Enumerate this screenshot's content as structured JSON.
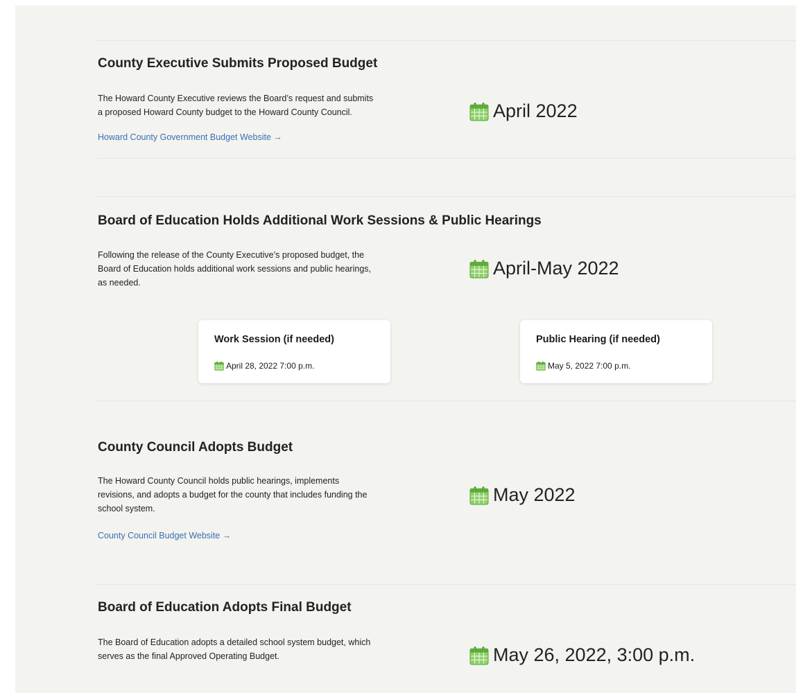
{
  "sections": [
    {
      "title": "County Executive Submits Proposed Budget",
      "description": [
        "The Howard County Executive reviews the Board’s request and submits",
        "a proposed Howard County budget to the Howard County Council."
      ],
      "link": "Howard County Government Budget Website →",
      "date": "April 2022"
    },
    {
      "title": "Board of Education Holds Additional Work Sessions & Public Hearings",
      "description": [
        "Following the release of the County Executive’s proposed budget, the",
        "Board of Education holds additional work sessions and public hearings,",
        "as needed."
      ],
      "date": "April-May 2022",
      "cards": [
        {
          "title": "Work Session (if needed)",
          "date": "April 28, 2022 7:00 p.m."
        },
        {
          "title": "Public Hearing (if needed)",
          "date": "May 5, 2022 7:00 p.m."
        }
      ]
    },
    {
      "title": "County Council Adopts Budget",
      "description": [
        "The Howard County Council holds public hearings, implements",
        "revisions, and adopts a budget for the county that includes funding the",
        "school system."
      ],
      "link": "County Council Budget Website →",
      "date": "May 2022"
    },
    {
      "title": "Board of Education Adopts Final Budget",
      "description": [
        "The Board of Education adopts a detailed school system budget, which",
        "serves as the final Approved Operating Budget."
      ],
      "date": "May 26, 2022, 3:00 p.m."
    }
  ]
}
